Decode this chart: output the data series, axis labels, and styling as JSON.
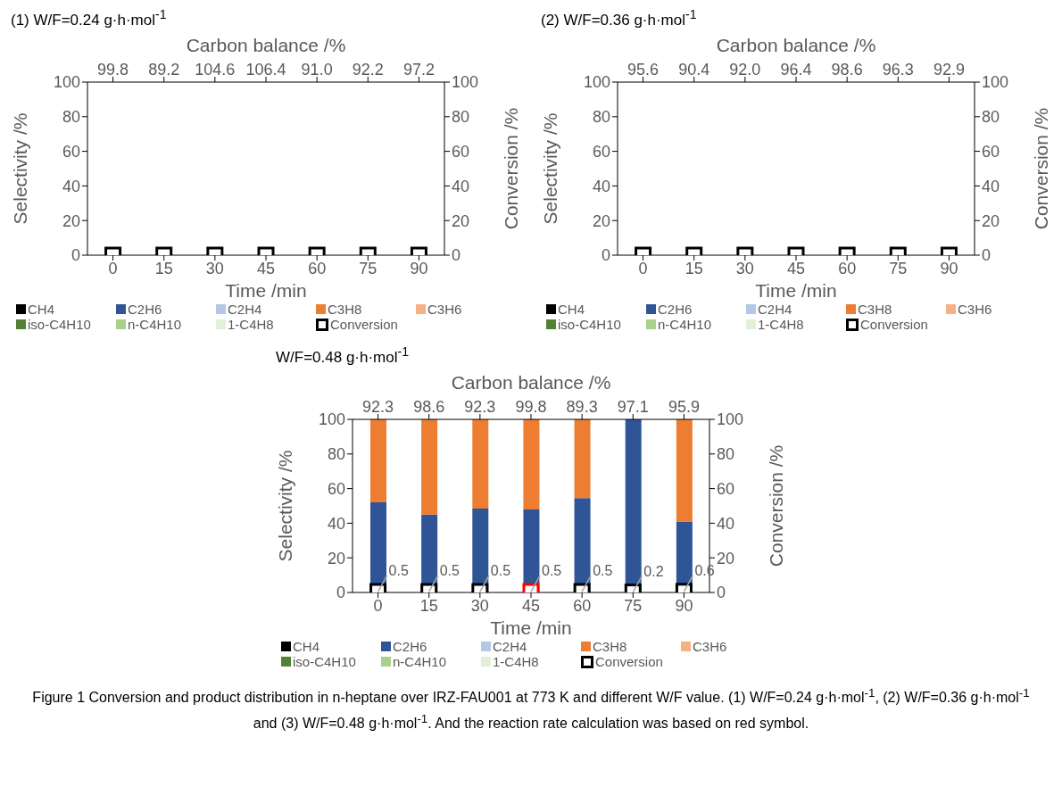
{
  "chart_data": [
    {
      "type": "bar",
      "title": "(1) W/F=0.24 g·h·mol$^{-1}$",
      "xlabel": "Time /min",
      "ylabel": "Selectivity /%",
      "y2label": "Conversion /%",
      "x2label": "Carbon balance /%",
      "categories": [
        "0",
        "15",
        "30",
        "45",
        "60",
        "75",
        "90"
      ],
      "stacked": true,
      "legend": "bottom",
      "ylim": [
        0,
        100
      ],
      "yticks": [
        0,
        20,
        40,
        60,
        80,
        100
      ],
      "y2lim": [
        0,
        100
      ],
      "y2ticks": [
        0,
        20,
        40,
        60,
        80,
        100
      ],
      "series": [
        {
          "name": "CH4",
          "color": "#000000",
          "values": [
            0,
            0,
            0,
            0,
            0,
            0,
            0
          ]
        },
        {
          "name": "C2H6",
          "color": "#2f5597",
          "values": [
            0,
            0,
            0,
            0,
            0,
            0,
            0
          ]
        },
        {
          "name": "C2H4",
          "color": "#b4c7e7",
          "values": [
            0,
            0,
            0,
            0,
            0,
            0,
            0
          ]
        },
        {
          "name": "C3H8",
          "color": "#ed7d31",
          "values": [
            0,
            0,
            0,
            0,
            0,
            0,
            0
          ]
        },
        {
          "name": "C3H6",
          "color": "#f4b183",
          "values": [
            0,
            0,
            0,
            0,
            0,
            0,
            0
          ]
        },
        {
          "name": "iso-C4H10",
          "color": "#548235",
          "values": [
            0,
            0,
            0,
            0,
            0,
            0,
            0
          ]
        },
        {
          "name": "n-C4H10",
          "color": "#a9d18e",
          "values": [
            0,
            0,
            0,
            0,
            0,
            0,
            0
          ]
        },
        {
          "name": "1-C4H8",
          "color": "#e2f0d9",
          "values": [
            0,
            0,
            0,
            0,
            0,
            0,
            0
          ]
        },
        {
          "name": "Conversion",
          "type": "scatter",
          "axis": "y2",
          "marker": "square",
          "color": "#000000",
          "values": [
            0,
            0,
            0,
            0,
            0,
            0,
            0
          ]
        }
      ],
      "annotations": [
        "99.8",
        "89.2",
        "104.6",
        "106.4",
        "91.0",
        "92.2",
        "97.2"
      ]
    },
    {
      "type": "bar",
      "title": "(2) W/F=0.36 g·h·mol$^{-1}$",
      "xlabel": "Time /min",
      "ylabel": "Selectivity /%",
      "y2label": "Conversion /%",
      "x2label": "Carbon balance /%",
      "categories": [
        "0",
        "15",
        "30",
        "45",
        "60",
        "75",
        "90"
      ],
      "stacked": true,
      "legend": "bottom",
      "ylim": [
        0,
        100
      ],
      "yticks": [
        0,
        20,
        40,
        60,
        80,
        100
      ],
      "y2lim": [
        0,
        100
      ],
      "y2ticks": [
        0,
        20,
        40,
        60,
        80,
        100
      ],
      "series": [
        {
          "name": "CH4",
          "color": "#000000",
          "values": [
            0,
            0,
            0,
            0,
            0,
            0,
            0
          ]
        },
        {
          "name": "C2H6",
          "color": "#2f5597",
          "values": [
            0,
            0,
            0,
            0,
            0,
            0,
            0
          ]
        },
        {
          "name": "C2H4",
          "color": "#b4c7e7",
          "values": [
            0,
            0,
            0,
            0,
            0,
            0,
            0
          ]
        },
        {
          "name": "C3H8",
          "color": "#ed7d31",
          "values": [
            0,
            0,
            0,
            0,
            0,
            0,
            0
          ]
        },
        {
          "name": "C3H6",
          "color": "#f4b183",
          "values": [
            0,
            0,
            0,
            0,
            0,
            0,
            0
          ]
        },
        {
          "name": "iso-C4H10",
          "color": "#548235",
          "values": [
            0,
            0,
            0,
            0,
            0,
            0,
            0
          ]
        },
        {
          "name": "n-C4H10",
          "color": "#a9d18e",
          "values": [
            0,
            0,
            0,
            0,
            0,
            0,
            0
          ]
        },
        {
          "name": "1-C4H8",
          "color": "#e2f0d9",
          "values": [
            0,
            0,
            0,
            0,
            0,
            0,
            0
          ]
        },
        {
          "name": "Conversion",
          "type": "scatter",
          "axis": "y2",
          "marker": "square",
          "color": "#000000",
          "values": [
            0,
            0,
            0,
            0,
            0,
            0,
            0
          ]
        }
      ],
      "annotations": [
        "95.6",
        "90.4",
        "92.0",
        "96.4",
        "98.6",
        "96.3",
        "92.9"
      ]
    },
    {
      "type": "bar",
      "title": "W/F=0.48 g·h·mol$^{-1}$",
      "xlabel": "Time /min",
      "ylabel": "Selectivity /%",
      "y2label": "Conversion /%",
      "x2label": "Carbon balance /%",
      "categories": [
        "0",
        "15",
        "30",
        "45",
        "60",
        "75",
        "90"
      ],
      "stacked": true,
      "legend": "bottom",
      "ylim": [
        0,
        100
      ],
      "yticks": [
        0,
        20,
        40,
        60,
        80,
        100
      ],
      "y2lim": [
        0,
        100
      ],
      "y2ticks": [
        0,
        20,
        40,
        60,
        80,
        100
      ],
      "series": [
        {
          "name": "CH4",
          "color": "#000000",
          "values": [
            0,
            0,
            0,
            0,
            0,
            0,
            0
          ]
        },
        {
          "name": "C2H6",
          "color": "#2f5597",
          "values": [
            52,
            45,
            48.5,
            48,
            54.5,
            100,
            41
          ]
        },
        {
          "name": "C2H4",
          "color": "#b4c7e7",
          "values": [
            0,
            0,
            0,
            0,
            0,
            0,
            0
          ]
        },
        {
          "name": "C3H8",
          "color": "#ed7d31",
          "values": [
            48,
            55,
            51.5,
            52,
            45.5,
            0,
            59
          ]
        },
        {
          "name": "C3H6",
          "color": "#f4b183",
          "values": [
            0,
            0,
            0,
            0,
            0,
            0,
            0
          ]
        },
        {
          "name": "iso-C4H10",
          "color": "#548235",
          "values": [
            0,
            0,
            0,
            0,
            0,
            0,
            0
          ]
        },
        {
          "name": "n-C4H10",
          "color": "#a9d18e",
          "values": [
            0,
            0,
            0,
            0,
            0,
            0,
            0
          ]
        },
        {
          "name": "1-C4H8",
          "color": "#e2f0d9",
          "values": [
            0,
            0,
            0,
            0,
            0,
            0,
            0
          ]
        },
        {
          "name": "Conversion",
          "type": "scatter",
          "axis": "y2",
          "marker": "square",
          "color": "#000000",
          "colors": [
            "#000000",
            "#000000",
            "#000000",
            "#ff0000",
            "#000000",
            "#000000",
            "#000000"
          ],
          "values": [
            0.5,
            0.5,
            0.5,
            0.5,
            0.5,
            0.2,
            0.6
          ],
          "value_labels": [
            "0.5",
            "0.5",
            "0.5",
            "0.5",
            "0.5",
            "0.2",
            "0.6"
          ]
        }
      ],
      "annotations": [
        "92.3",
        "98.6",
        "92.3",
        "99.8",
        "89.3",
        "97.1",
        "95.9",
        "Figure 1 Conversion and product distribution in n-heptane over IRZ-FAU001 at 773 K and different W/F value. (1) W/F=0.24 g·h·mol$^{-1}$, (2) W/F=0.36 g·h·mol$^{-1}$ and (3) W/F=0.48 g·h·mol$^{-1}$. And the reaction rate calculation was based on red symbol."
      ]
    }
  ]
}
